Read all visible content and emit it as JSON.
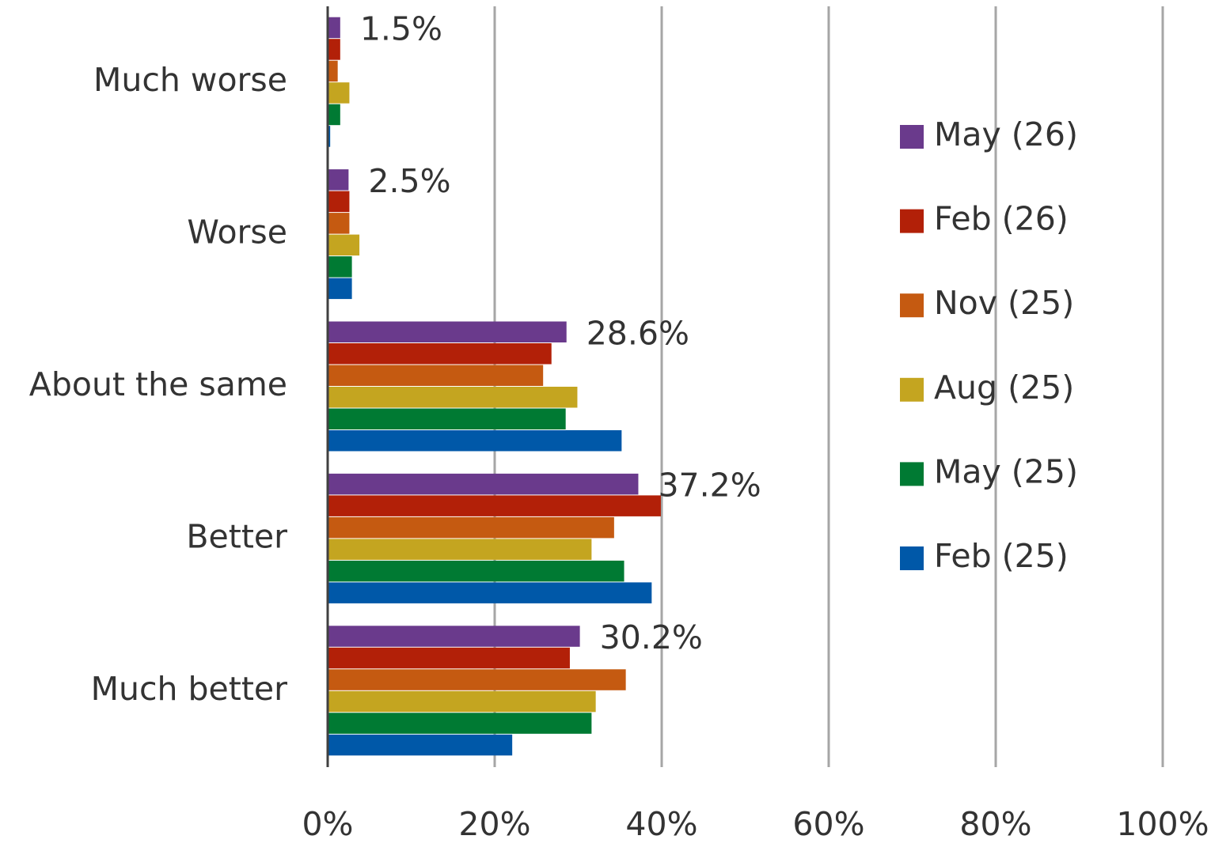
{
  "chart_data": {
    "type": "barh",
    "categories": [
      "Much worse",
      "Worse",
      "About the same",
      "Better",
      "Much better"
    ],
    "series": [
      {
        "name": "May (26)",
        "color": "#6a3a8c",
        "values": [
          1.5,
          2.5,
          28.6,
          37.2,
          30.2
        ],
        "value_labels": [
          "1.5%",
          "2.5%",
          "28.6%",
          "37.2%",
          "30.2%"
        ]
      },
      {
        "name": "Feb (26)",
        "color": "#b22008",
        "values": [
          1.5,
          2.6,
          26.8,
          39.9,
          29.0
        ]
      },
      {
        "name": "Nov (25)",
        "color": "#c55a11",
        "values": [
          1.2,
          2.6,
          25.8,
          34.3,
          35.7
        ]
      },
      {
        "name": "Aug (25)",
        "color": "#c4a520",
        "values": [
          2.6,
          3.8,
          29.9,
          31.6,
          32.1
        ]
      },
      {
        "name": "May (25)",
        "color": "#007a33",
        "values": [
          1.5,
          2.9,
          28.5,
          35.5,
          31.6
        ]
      },
      {
        "name": "Feb (25)",
        "color": "#0058a8",
        "values": [
          0.3,
          2.9,
          35.2,
          38.8,
          22.1
        ]
      }
    ],
    "xlim": [
      0,
      100
    ],
    "xticks": [
      {
        "value": 0,
        "label": "0%"
      },
      {
        "value": 20,
        "label": "20%"
      },
      {
        "value": 40,
        "label": "40%"
      },
      {
        "value": 60,
        "label": "60%"
      },
      {
        "value": 80,
        "label": "80%"
      },
      {
        "value": 100,
        "label": "100%"
      }
    ],
    "grid": true,
    "legend": "right"
  }
}
